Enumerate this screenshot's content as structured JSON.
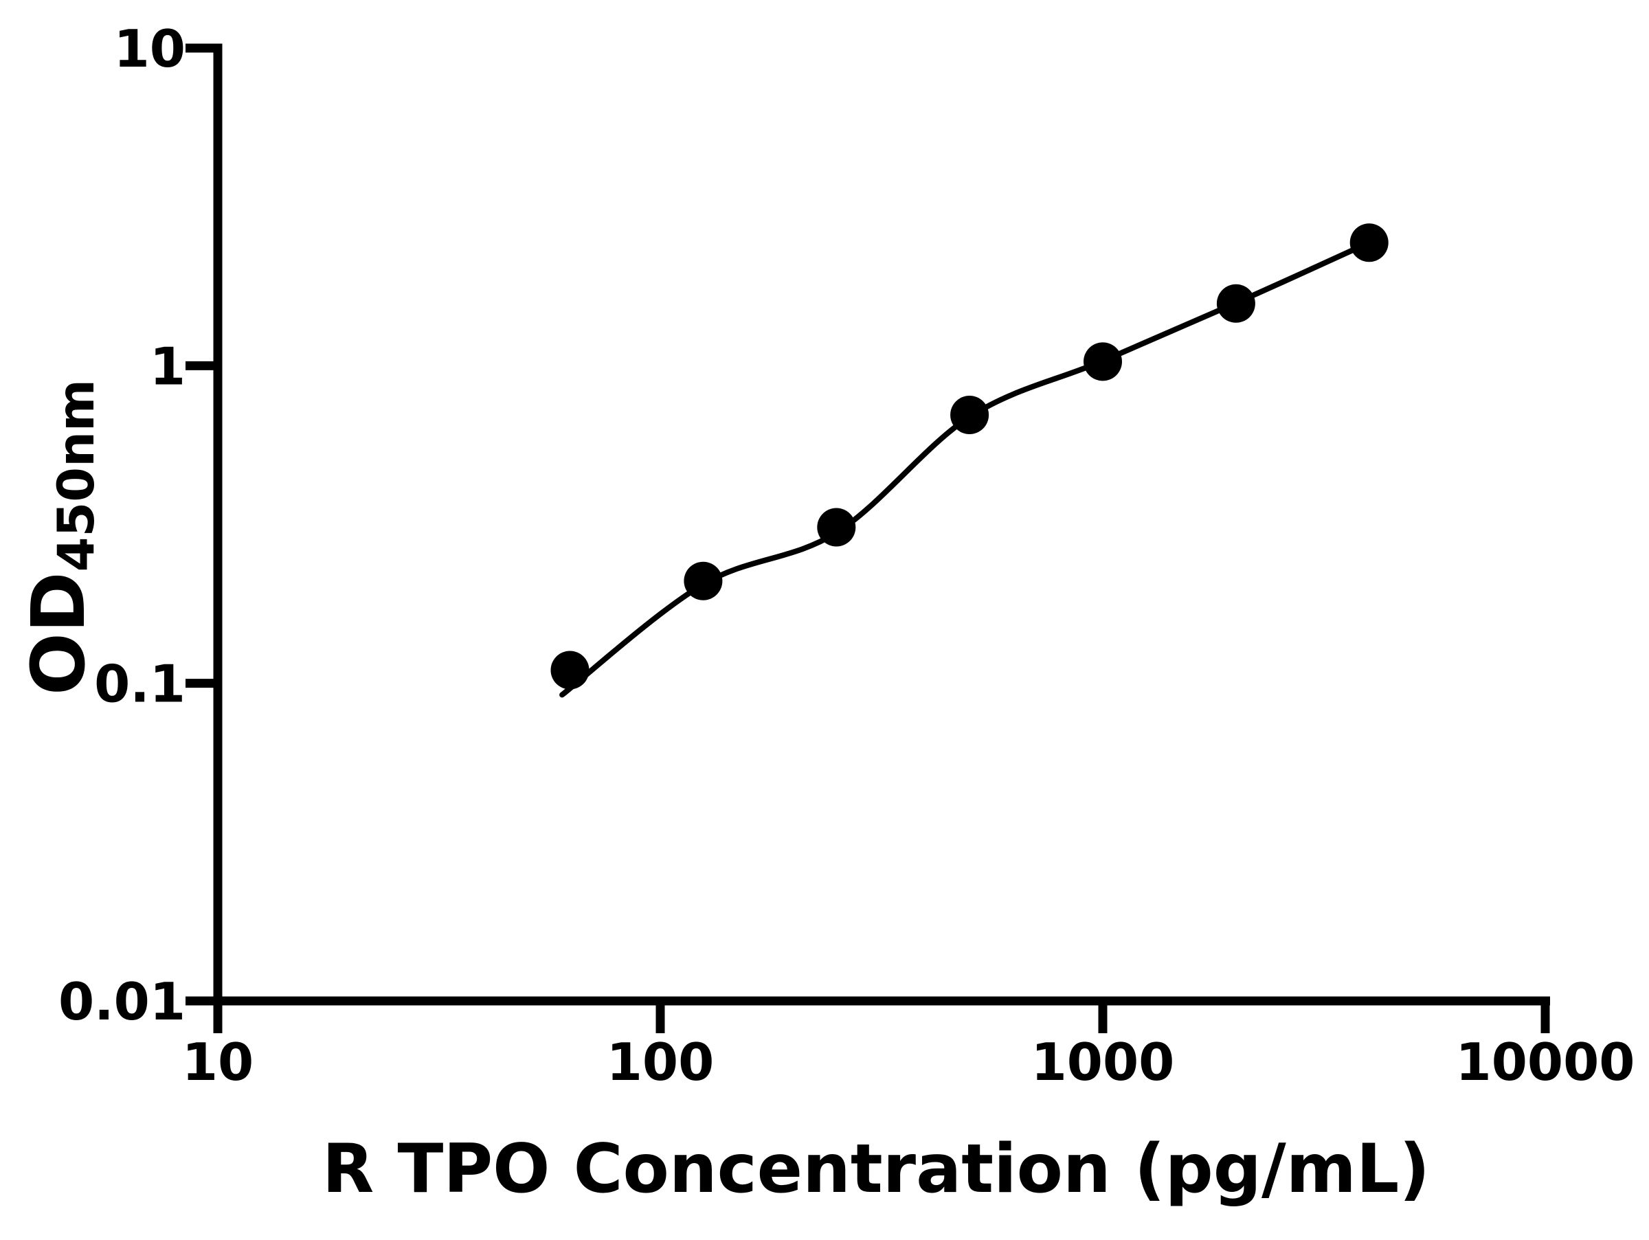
{
  "chart_data": {
    "type": "scatter",
    "title": "",
    "xlabel": "R TPO Concentration (pg/mL)",
    "ylabel_main": "OD",
    "ylabel_subscript": "450nm",
    "x_scale": "log",
    "y_scale": "log",
    "xlim": [
      10,
      10000
    ],
    "ylim": [
      0.01,
      10
    ],
    "x_ticks": [
      10,
      100,
      1000,
      10000
    ],
    "x_tick_labels": [
      "10",
      "100",
      "1000",
      "10000"
    ],
    "y_ticks": [
      10,
      1,
      0.1,
      0.01
    ],
    "y_tick_labels": [
      "10",
      "1",
      "0.1",
      "0.01"
    ],
    "grid": false,
    "legend": "none",
    "series": [
      {
        "name": "standard-curve-points",
        "marker": "filled-circle",
        "color": "#000000",
        "x": [
          62.5,
          125,
          250,
          500,
          1000,
          2000,
          4000
        ],
        "y": [
          0.11,
          0.21,
          0.31,
          0.7,
          1.03,
          1.57,
          2.44
        ]
      }
    ],
    "fit_curve": {
      "name": "fitted-standard-curve",
      "color": "#000000",
      "x": [
        60,
        125,
        250,
        500,
        1000,
        2000,
        4000
      ],
      "y": [
        0.092,
        0.205,
        0.298,
        0.69,
        1.035,
        1.575,
        2.44
      ]
    },
    "colors": {
      "ink": "#000000",
      "background": "#ffffff"
    }
  }
}
